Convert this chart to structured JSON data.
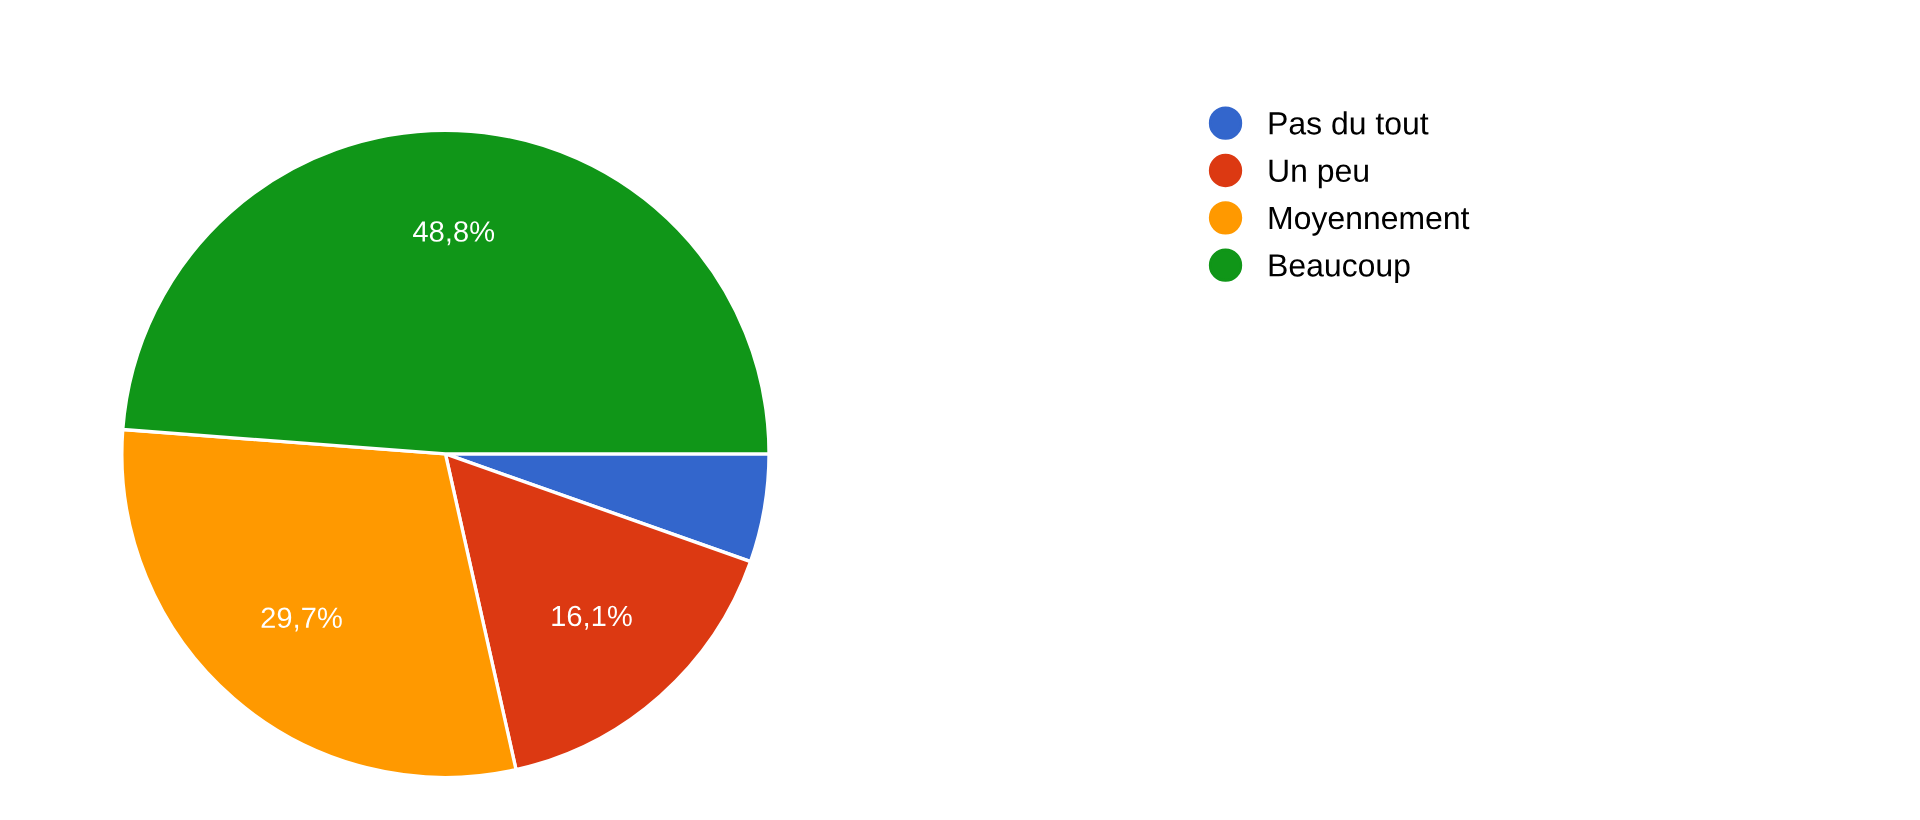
{
  "chart_data": {
    "type": "pie",
    "categories": [
      "Pas du tout",
      "Un peu",
      "Moyennement",
      "Beaucoup"
    ],
    "values": [
      5.4,
      16.1,
      29.7,
      48.8
    ],
    "colors": [
      "#3366cc",
      "#dc3912",
      "#ff9900",
      "#109618"
    ],
    "value_labels": [
      null,
      "16,1%",
      "29,7%",
      "48,8%"
    ],
    "legend": "top right"
  }
}
